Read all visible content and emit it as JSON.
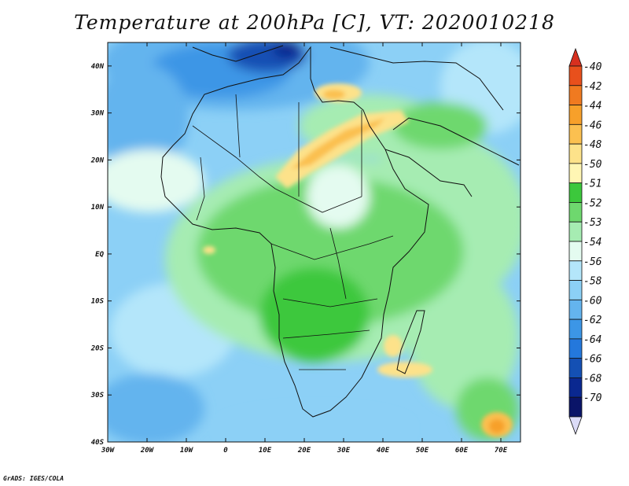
{
  "title": "Temperature at 200hPa [C], VT: 2020010218",
  "credit": "GrADS: IGES/COLA",
  "map": {
    "lon_range": [
      -30,
      75
    ],
    "lat_range": [
      -40,
      45
    ],
    "lon_ticks": [
      {
        "v": -30,
        "label": "30W"
      },
      {
        "v": -20,
        "label": "20W"
      },
      {
        "v": -10,
        "label": "10W"
      },
      {
        "v": 0,
        "label": "0"
      },
      {
        "v": 10,
        "label": "10E"
      },
      {
        "v": 20,
        "label": "20E"
      },
      {
        "v": 30,
        "label": "30E"
      },
      {
        "v": 40,
        "label": "40E"
      },
      {
        "v": 50,
        "label": "50E"
      },
      {
        "v": 60,
        "label": "60E"
      },
      {
        "v": 70,
        "label": "70E"
      }
    ],
    "lat_ticks": [
      {
        "v": 40,
        "label": "40N"
      },
      {
        "v": 30,
        "label": "30N"
      },
      {
        "v": 20,
        "label": "20N"
      },
      {
        "v": 10,
        "label": "10N"
      },
      {
        "v": 0,
        "label": "EQ"
      },
      {
        "v": -10,
        "label": "10S"
      },
      {
        "v": -20,
        "label": "20S"
      },
      {
        "v": -30,
        "label": "30S"
      },
      {
        "v": -40,
        "label": "40S"
      }
    ]
  },
  "legend": {
    "top_arrow_color": "#d7301f",
    "bottom_arrow_color": "#dcdcf8",
    "bins": [
      {
        "label": "-40",
        "color": "#e8501c"
      },
      {
        "label": "-42",
        "color": "#f07a20"
      },
      {
        "label": "-44",
        "color": "#f7a02a"
      },
      {
        "label": "-46",
        "color": "#fbc050"
      },
      {
        "label": "-48",
        "color": "#fde28a"
      },
      {
        "label": "-50",
        "color": "#fff6b4"
      },
      {
        "label": "-51",
        "color": "#3cc83c"
      },
      {
        "label": "-52",
        "color": "#6ed86e"
      },
      {
        "label": "-53",
        "color": "#a6ecb2"
      },
      {
        "label": "-54",
        "color": "#e4fbf0"
      },
      {
        "label": "-56",
        "color": "#b4e6fa"
      },
      {
        "label": "-58",
        "color": "#8cd0f6"
      },
      {
        "label": "-60",
        "color": "#64b4ee"
      },
      {
        "label": "-62",
        "color": "#3c96e6"
      },
      {
        "label": "-64",
        "color": "#2478dc"
      },
      {
        "label": "-66",
        "color": "#1450b4"
      },
      {
        "label": "-68",
        "color": "#0a2890"
      },
      {
        "label": "-70",
        "color": "#0a1468"
      }
    ]
  }
}
